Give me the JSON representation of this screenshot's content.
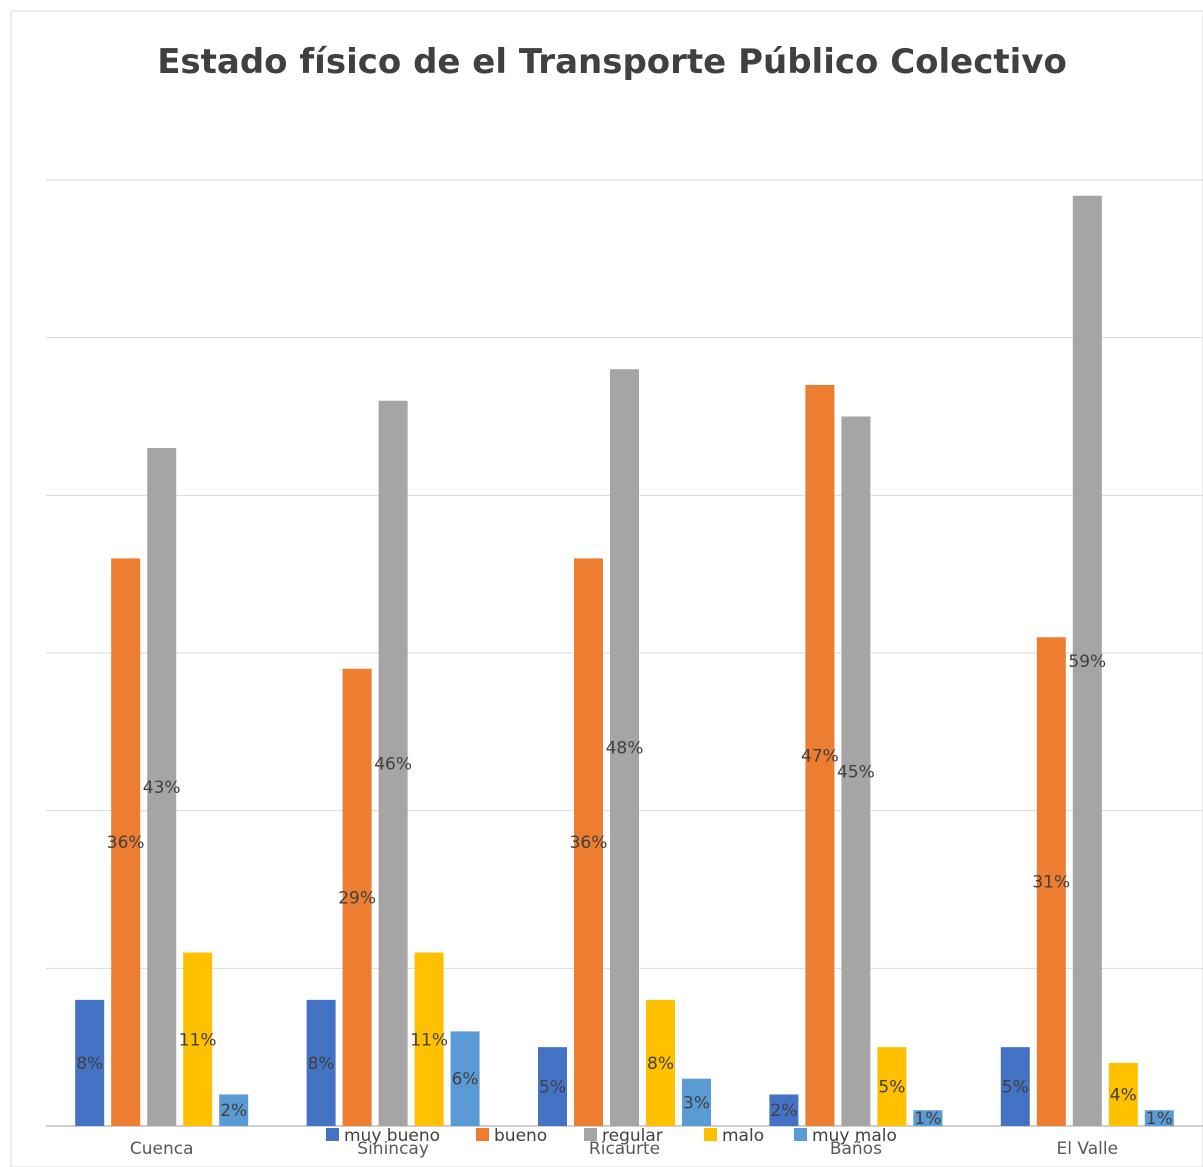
{
  "chart_data": {
    "type": "bar",
    "title": "Estado físico de el Transporte Público Colectivo",
    "xlabel": "",
    "ylabel": "",
    "categories": [
      "Cuenca",
      "Sinincay",
      "Ricaurte",
      "Baños",
      "El Valle"
    ],
    "ylim": [
      0,
      60
    ],
    "grid": true,
    "legend_position": "bottom",
    "series": [
      {
        "name": "muy bueno",
        "color": "#4472C4",
        "values": [
          8,
          8,
          5,
          2,
          5
        ],
        "labels": [
          "8%",
          "8%",
          "5%",
          "2%",
          "5%"
        ]
      },
      {
        "name": "bueno",
        "color": "#ED7D31",
        "values": [
          36,
          29,
          36,
          47,
          31
        ],
        "labels": [
          "36%",
          "29%",
          "36%",
          "47%",
          "31%"
        ]
      },
      {
        "name": "regular",
        "color": "#A5A5A5",
        "values": [
          43,
          46,
          48,
          45,
          59
        ],
        "labels": [
          "43%",
          "46%",
          "48%",
          "45%",
          "59%"
        ]
      },
      {
        "name": "malo",
        "color": "#FFC000",
        "values": [
          11,
          11,
          8,
          5,
          4
        ],
        "labels": [
          "11%",
          "11%",
          "8%",
          "5%",
          "4%"
        ]
      },
      {
        "name": "muy malo",
        "color": "#5B9BD5",
        "values": [
          2,
          6,
          3,
          1,
          1
        ],
        "labels": [
          "2%",
          "6%",
          "3%",
          "1%",
          "1%"
        ]
      }
    ]
  }
}
